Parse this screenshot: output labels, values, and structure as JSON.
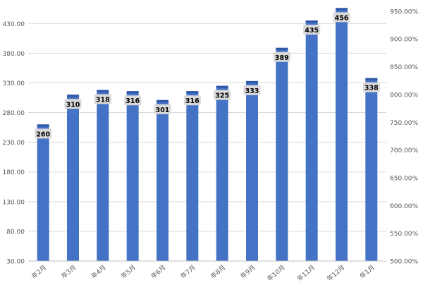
{
  "chart_data": {
    "type": "bar",
    "categories": [
      "年2月",
      "年3月",
      "年4月",
      "年5月",
      "年6月",
      "年7月",
      "年8月",
      "年9月",
      "年10月",
      "年11月",
      "年12月",
      "年1月"
    ],
    "series": [
      {
        "values": [
          260,
          310,
          318,
          316,
          301,
          316,
          325,
          333,
          389,
          435,
          456,
          338
        ]
      }
    ],
    "data_labels": [
      "260",
      "310",
      "318",
      "316",
      "301",
      "316",
      "325",
      "333",
      "389",
      "435",
      "456",
      "338"
    ],
    "y_left": {
      "ticks": [
        30,
        80,
        130,
        180,
        230,
        280,
        330,
        380,
        430
      ],
      "tick_labels": [
        "30.00",
        "80.00",
        "130.00",
        "180.00",
        "230.00",
        "280.00",
        "330.00",
        "380.00",
        "430.00"
      ],
      "range": [
        30,
        460
      ]
    },
    "y_right": {
      "ticks": [
        500,
        550,
        600,
        650,
        700,
        750,
        800,
        850,
        900,
        950
      ],
      "tick_labels": [
        "500.00%",
        "550.00%",
        "600.00%",
        "650.00%",
        "700.00%",
        "750.00%",
        "800.00%",
        "850.00%",
        "900.00%",
        "950.00%"
      ],
      "range": [
        500,
        960
      ]
    },
    "grid": true,
    "legend": "none",
    "colors": {
      "bar": "#4472c4",
      "bar_cap": "#2e56a8",
      "label_bg": "#d9d9d9",
      "grid": "#d9d9d9",
      "axis_text": "#595959"
    }
  }
}
